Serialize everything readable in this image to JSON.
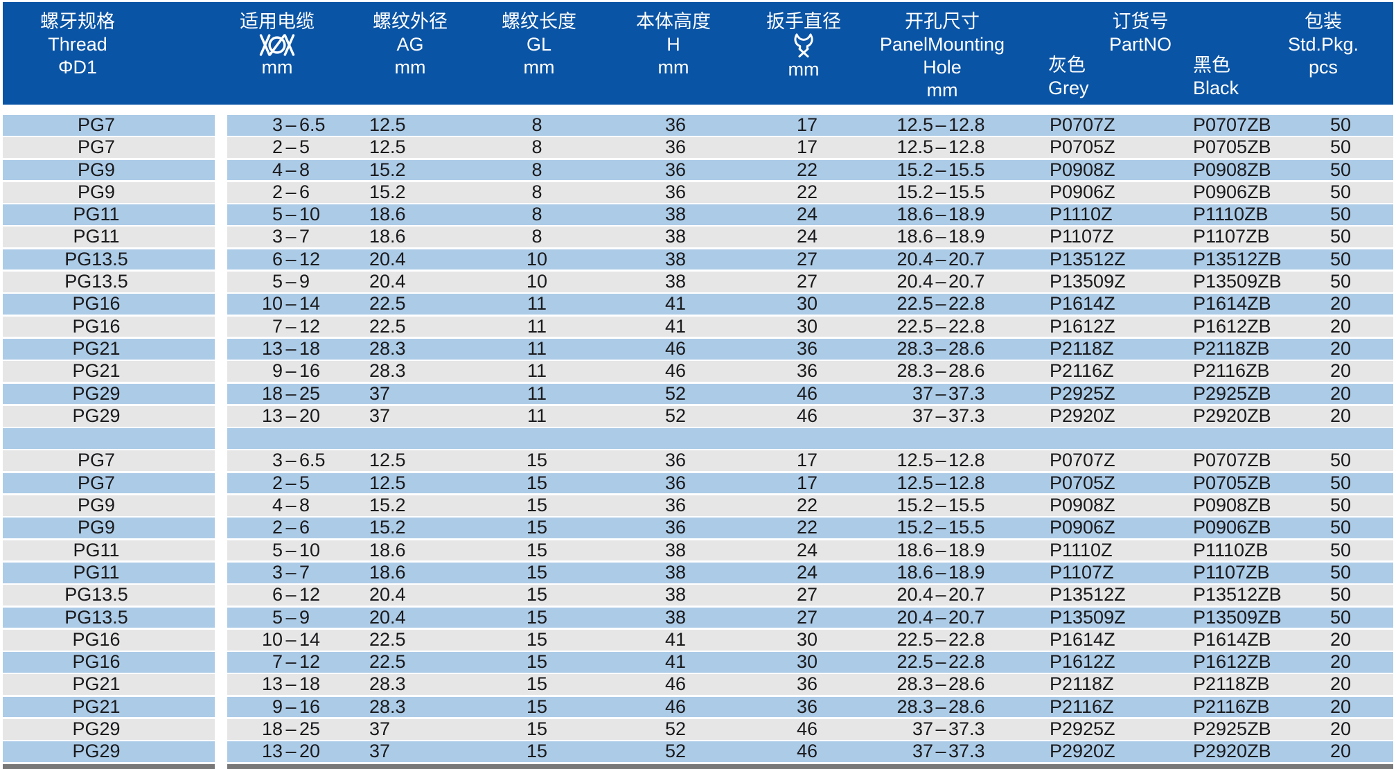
{
  "header": {
    "thread": {
      "cn": "螺牙规格",
      "en": "Thread",
      "sym": "ΦD1"
    },
    "cable": {
      "cn": "适用电缆",
      "icon": "cable-diameter-icon",
      "unit": "mm"
    },
    "ag": {
      "cn": "螺纹外径",
      "en": "AG",
      "unit": "mm"
    },
    "gl": {
      "cn": "螺纹长度",
      "en": "GL",
      "unit": "mm"
    },
    "h": {
      "cn": "本体高度",
      "en": "H",
      "unit": "mm"
    },
    "wrench": {
      "cn": "扳手直径",
      "icon": "wrench-icon",
      "unit": "mm"
    },
    "hole": {
      "cn": "开孔尺寸",
      "en1": "PanelMounting",
      "en2": "Hole",
      "unit": "mm"
    },
    "partno": {
      "cn": "订货号",
      "en": "PartNO"
    },
    "grey": {
      "cn": "灰色",
      "en": "Grey"
    },
    "black": {
      "cn": "黑色",
      "en": "Black"
    },
    "pkg": {
      "cn": "包装",
      "en": "Std.Pkg.",
      "unit": "pcs"
    }
  },
  "colors": {
    "header_bg": "#0A54A5",
    "row_blue": "#ACCBE7",
    "row_gray": "#E6E6E7",
    "text": "#1A1A1C",
    "bottom_edge": "#787878"
  },
  "rows": [
    {
      "thread": "PG7",
      "cable_lo": "3",
      "cable_hi": "6.5",
      "ag": "12.5",
      "gl": "8",
      "h": "36",
      "wrench": "17",
      "hole_lo": "12.5",
      "hole_hi": "12.8",
      "grey": "P0707Z",
      "black": "P0707ZB",
      "pcs": "50"
    },
    {
      "thread": "PG7",
      "cable_lo": "2",
      "cable_hi": "5",
      "ag": "12.5",
      "gl": "8",
      "h": "36",
      "wrench": "17",
      "hole_lo": "12.5",
      "hole_hi": "12.8",
      "grey": "P0705Z",
      "black": "P0705ZB",
      "pcs": "50"
    },
    {
      "thread": "PG9",
      "cable_lo": "4",
      "cable_hi": "8",
      "ag": "15.2",
      "gl": "8",
      "h": "36",
      "wrench": "22",
      "hole_lo": "15.2",
      "hole_hi": "15.5",
      "grey": "P0908Z",
      "black": "P0908ZB",
      "pcs": "50"
    },
    {
      "thread": "PG9",
      "cable_lo": "2",
      "cable_hi": "6",
      "ag": "15.2",
      "gl": "8",
      "h": "36",
      "wrench": "22",
      "hole_lo": "15.2",
      "hole_hi": "15.5",
      "grey": "P0906Z",
      "black": "P0906ZB",
      "pcs": "50"
    },
    {
      "thread": "PG11",
      "cable_lo": "5",
      "cable_hi": "10",
      "ag": "18.6",
      "gl": "8",
      "h": "38",
      "wrench": "24",
      "hole_lo": "18.6",
      "hole_hi": "18.9",
      "grey": "P1110Z",
      "black": "P1110ZB",
      "pcs": "50"
    },
    {
      "thread": "PG11",
      "cable_lo": "3",
      "cable_hi": "7",
      "ag": "18.6",
      "gl": "8",
      "h": "38",
      "wrench": "24",
      "hole_lo": "18.6",
      "hole_hi": "18.9",
      "grey": "P1107Z",
      "black": "P1107ZB",
      "pcs": "50"
    },
    {
      "thread": "PG13.5",
      "cable_lo": "6",
      "cable_hi": "12",
      "ag": "20.4",
      "gl": "10",
      "h": "38",
      "wrench": "27",
      "hole_lo": "20.4",
      "hole_hi": "20.7",
      "grey": "P13512Z",
      "black": "P13512ZB",
      "pcs": "50"
    },
    {
      "thread": "PG13.5",
      "cable_lo": "5",
      "cable_hi": "9",
      "ag": "20.4",
      "gl": "10",
      "h": "38",
      "wrench": "27",
      "hole_lo": "20.4",
      "hole_hi": "20.7",
      "grey": "P13509Z",
      "black": "P13509ZB",
      "pcs": "50"
    },
    {
      "thread": "PG16",
      "cable_lo": "10",
      "cable_hi": "14",
      "ag": "22.5",
      "gl": "11",
      "h": "41",
      "wrench": "30",
      "hole_lo": "22.5",
      "hole_hi": "22.8",
      "grey": "P1614Z",
      "black": "P1614ZB",
      "pcs": "20"
    },
    {
      "thread": "PG16",
      "cable_lo": "7",
      "cable_hi": "12",
      "ag": "22.5",
      "gl": "11",
      "h": "41",
      "wrench": "30",
      "hole_lo": "22.5",
      "hole_hi": "22.8",
      "grey": "P1612Z",
      "black": "P1612ZB",
      "pcs": "20"
    },
    {
      "thread": "PG21",
      "cable_lo": "13",
      "cable_hi": "18",
      "ag": "28.3",
      "gl": "11",
      "h": "46",
      "wrench": "36",
      "hole_lo": "28.3",
      "hole_hi": "28.6",
      "grey": "P2118Z",
      "black": "P2118ZB",
      "pcs": "20"
    },
    {
      "thread": "PG21",
      "cable_lo": "9",
      "cable_hi": "16",
      "ag": "28.3",
      "gl": "11",
      "h": "46",
      "wrench": "36",
      "hole_lo": "28.3",
      "hole_hi": "28.6",
      "grey": "P2116Z",
      "black": "P2116ZB",
      "pcs": "20"
    },
    {
      "thread": "PG29",
      "cable_lo": "18",
      "cable_hi": "25",
      "ag": "37",
      "gl": "11",
      "h": "52",
      "wrench": "46",
      "hole_lo": "37",
      "hole_hi": "37.3",
      "grey": "P2925Z",
      "black": "P2925ZB",
      "pcs": "20"
    },
    {
      "thread": "PG29",
      "cable_lo": "13",
      "cable_hi": "20",
      "ag": "37",
      "gl": "11",
      "h": "52",
      "wrench": "46",
      "hole_lo": "37",
      "hole_hi": "37.3",
      "grey": "P2920Z",
      "black": "P2920ZB",
      "pcs": "20"
    },
    {
      "separator": true
    },
    {
      "thread": "PG7",
      "cable_lo": "3",
      "cable_hi": "6.5",
      "ag": "12.5",
      "gl": "15",
      "h": "36",
      "wrench": "17",
      "hole_lo": "12.5",
      "hole_hi": "12.8",
      "grey": "P0707Z",
      "black": "P0707ZB",
      "pcs": "50"
    },
    {
      "thread": "PG7",
      "cable_lo": "2",
      "cable_hi": "5",
      "ag": "12.5",
      "gl": "15",
      "h": "36",
      "wrench": "17",
      "hole_lo": "12.5",
      "hole_hi": "12.8",
      "grey": "P0705Z",
      "black": "P0705ZB",
      "pcs": "50"
    },
    {
      "thread": "PG9",
      "cable_lo": "4",
      "cable_hi": "8",
      "ag": "15.2",
      "gl": "15",
      "h": "36",
      "wrench": "22",
      "hole_lo": "15.2",
      "hole_hi": "15.5",
      "grey": "P0908Z",
      "black": "P0908ZB",
      "pcs": "50"
    },
    {
      "thread": "PG9",
      "cable_lo": "2",
      "cable_hi": "6",
      "ag": "15.2",
      "gl": "15",
      "h": "36",
      "wrench": "22",
      "hole_lo": "15.2",
      "hole_hi": "15.5",
      "grey": "P0906Z",
      "black": "P0906ZB",
      "pcs": "50"
    },
    {
      "thread": "PG11",
      "cable_lo": "5",
      "cable_hi": "10",
      "ag": "18.6",
      "gl": "15",
      "h": "38",
      "wrench": "24",
      "hole_lo": "18.6",
      "hole_hi": "18.9",
      "grey": "P1110Z",
      "black": "P1110ZB",
      "pcs": "50"
    },
    {
      "thread": "PG11",
      "cable_lo": "3",
      "cable_hi": "7",
      "ag": "18.6",
      "gl": "15",
      "h": "38",
      "wrench": "24",
      "hole_lo": "18.6",
      "hole_hi": "18.9",
      "grey": "P1107Z",
      "black": "P1107ZB",
      "pcs": "50"
    },
    {
      "thread": "PG13.5",
      "cable_lo": "6",
      "cable_hi": "12",
      "ag": "20.4",
      "gl": "15",
      "h": "38",
      "wrench": "27",
      "hole_lo": "20.4",
      "hole_hi": "20.7",
      "grey": "P13512Z",
      "black": "P13512ZB",
      "pcs": "50"
    },
    {
      "thread": "PG13.5",
      "cable_lo": "5",
      "cable_hi": "9",
      "ag": "20.4",
      "gl": "15",
      "h": "38",
      "wrench": "27",
      "hole_lo": "20.4",
      "hole_hi": "20.7",
      "grey": "P13509Z",
      "black": "P13509ZB",
      "pcs": "50"
    },
    {
      "thread": "PG16",
      "cable_lo": "10",
      "cable_hi": "14",
      "ag": "22.5",
      "gl": "15",
      "h": "41",
      "wrench": "30",
      "hole_lo": "22.5",
      "hole_hi": "22.8",
      "grey": "P1614Z",
      "black": "P1614ZB",
      "pcs": "20"
    },
    {
      "thread": "PG16",
      "cable_lo": "7",
      "cable_hi": "12",
      "ag": "22.5",
      "gl": "15",
      "h": "41",
      "wrench": "30",
      "hole_lo": "22.5",
      "hole_hi": "22.8",
      "grey": "P1612Z",
      "black": "P1612ZB",
      "pcs": "20"
    },
    {
      "thread": "PG21",
      "cable_lo": "13",
      "cable_hi": "18",
      "ag": "28.3",
      "gl": "15",
      "h": "46",
      "wrench": "36",
      "hole_lo": "28.3",
      "hole_hi": "28.6",
      "grey": "P2118Z",
      "black": "P2118ZB",
      "pcs": "20"
    },
    {
      "thread": "PG21",
      "cable_lo": "9",
      "cable_hi": "16",
      "ag": "28.3",
      "gl": "15",
      "h": "46",
      "wrench": "36",
      "hole_lo": "28.3",
      "hole_hi": "28.6",
      "grey": "P2116Z",
      "black": "P2116ZB",
      "pcs": "20"
    },
    {
      "thread": "PG29",
      "cable_lo": "18",
      "cable_hi": "25",
      "ag": "37",
      "gl": "15",
      "h": "52",
      "wrench": "46",
      "hole_lo": "37",
      "hole_hi": "37.3",
      "grey": "P2925Z",
      "black": "P2925ZB",
      "pcs": "20"
    },
    {
      "thread": "PG29",
      "cable_lo": "13",
      "cable_hi": "20",
      "ag": "37",
      "gl": "15",
      "h": "52",
      "wrench": "46",
      "hole_lo": "37",
      "hole_hi": "37.3",
      "grey": "P2920Z",
      "black": "P2920ZB",
      "pcs": "20"
    }
  ]
}
